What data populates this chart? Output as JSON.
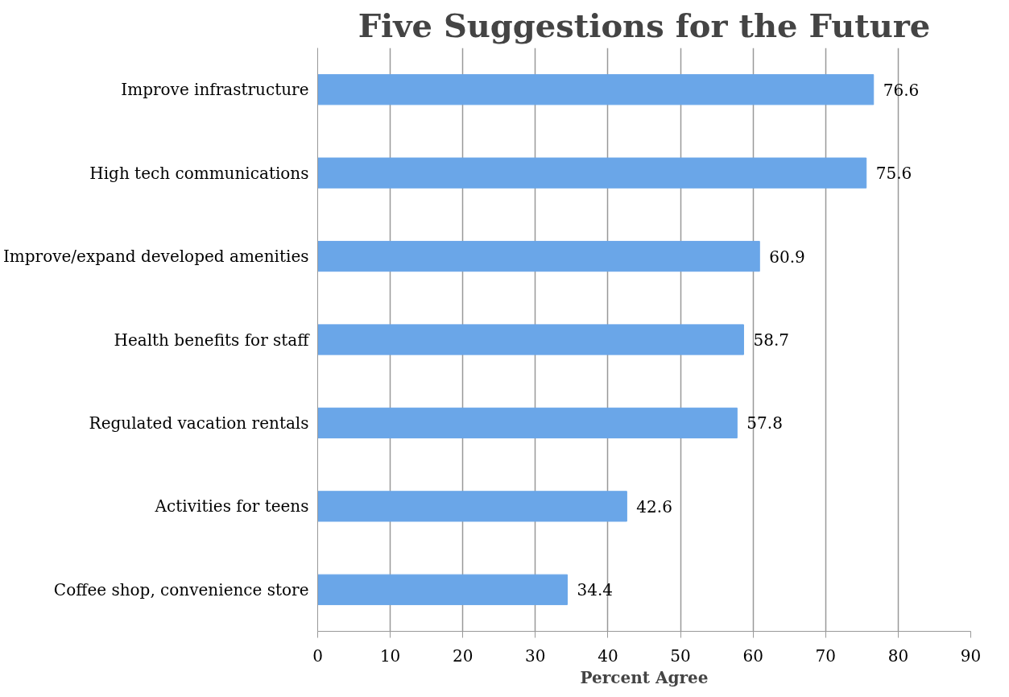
{
  "chart_data": {
    "type": "bar",
    "orientation": "horizontal",
    "title": "Five Suggestions for the Future",
    "xlabel": "Percent Agree",
    "categories": [
      "Improve infrastructure",
      "High tech communications",
      "Improve/expand developed amenities",
      "Health benefits for staff",
      "Regulated vacation rentals",
      "Activities for teens",
      "Coffee shop, convenience store"
    ],
    "values": [
      76.6,
      75.6,
      60.9,
      58.7,
      57.8,
      42.6,
      34.4
    ],
    "color": "#6aa6e8",
    "xlim": [
      0,
      90
    ],
    "xticks": [
      0,
      10,
      20,
      30,
      40,
      50,
      60,
      70,
      80,
      90
    ],
    "grid": "x",
    "data_labels": true
  }
}
